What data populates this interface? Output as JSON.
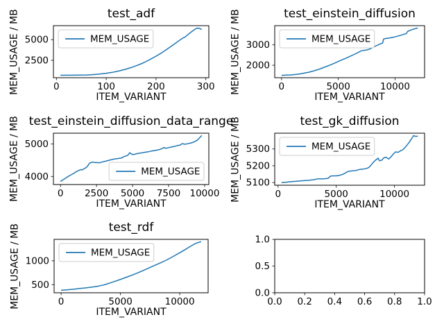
{
  "figure": {
    "background": "#ffffff",
    "line_color": "#1f77b4",
    "spine_color": "#000000",
    "legend_edge_color": "#cccccc",
    "legend_face_color": "rgba(255,255,255,0.8)"
  },
  "chart_data": [
    {
      "type": "line",
      "title": "test_adf",
      "xlabel": "ITEM_VARIANT",
      "ylabel": "MEM_USAGE / MB",
      "legend_loc": "upper left",
      "grid": false,
      "xlim": [
        -6,
        306
      ],
      "ylim": [
        394,
        6690
      ],
      "xticks": [
        0,
        100,
        200,
        300
      ],
      "xtick_labels": [
        "0",
        "100",
        "200",
        "300"
      ],
      "yticks": [
        2500,
        5000
      ],
      "ytick_labels": [
        "2500",
        "5000"
      ],
      "series": [
        {
          "name": "MEM_USAGE",
          "color": "#1f77b4",
          "points": [
            [
              8,
              690
            ],
            [
              20,
              698
            ],
            [
              32,
              700
            ],
            [
              45,
              705
            ],
            [
              60,
              725
            ],
            [
              72,
              760
            ],
            [
              85,
              820
            ],
            [
              100,
              930
            ],
            [
              112,
              1040
            ],
            [
              125,
              1200
            ],
            [
              138,
              1400
            ],
            [
              150,
              1620
            ],
            [
              162,
              1880
            ],
            [
              175,
              2200
            ],
            [
              188,
              2600
            ],
            [
              200,
              3000
            ],
            [
              210,
              3360
            ],
            [
              220,
              3750
            ],
            [
              230,
              4180
            ],
            [
              240,
              4600
            ],
            [
              248,
              4950
            ],
            [
              254,
              5200
            ],
            [
              258,
              5300
            ],
            [
              263,
              5550
            ],
            [
              268,
              5800
            ],
            [
              273,
              6030
            ],
            [
              278,
              6250
            ],
            [
              282,
              6390
            ],
            [
              285,
              6400
            ],
            [
              288,
              6340
            ],
            [
              292,
              6220
            ]
          ]
        }
      ]
    },
    {
      "type": "line",
      "title": "test_einstein_diffusion",
      "xlabel": "ITEM_VARIANT",
      "ylabel": "MEM_USAGE / MB",
      "legend_loc": "upper left",
      "grid": false,
      "xlim": [
        -600,
        12600
      ],
      "ylim": [
        1390,
        3940
      ],
      "xticks": [
        0,
        5000,
        10000
      ],
      "xtick_labels": [
        "0",
        "5000",
        "10000"
      ],
      "yticks": [
        2000,
        3000
      ],
      "ytick_labels": [
        "2000",
        "3000"
      ],
      "series": [
        {
          "name": "MEM_USAGE",
          "color": "#1f77b4",
          "points": [
            [
              0,
              1505
            ],
            [
              400,
              1515
            ],
            [
              800,
              1525
            ],
            [
              1200,
              1545
            ],
            [
              1600,
              1575
            ],
            [
              2000,
              1615
            ],
            [
              2400,
              1660
            ],
            [
              2800,
              1715
            ],
            [
              3200,
              1785
            ],
            [
              3600,
              1865
            ],
            [
              4000,
              1950
            ],
            [
              4400,
              2040
            ],
            [
              4800,
              2135
            ],
            [
              5200,
              2235
            ],
            [
              5600,
              2330
            ],
            [
              6000,
              2430
            ],
            [
              6400,
              2530
            ],
            [
              6700,
              2610
            ],
            [
              7000,
              2705
            ],
            [
              7200,
              2725
            ],
            [
              7500,
              2745
            ],
            [
              7800,
              2805
            ],
            [
              8100,
              2890
            ],
            [
              8400,
              2970
            ],
            [
              8700,
              3045
            ],
            [
              8900,
              3090
            ],
            [
              9000,
              3290
            ],
            [
              9200,
              3315
            ],
            [
              9500,
              3335
            ],
            [
              9800,
              3365
            ],
            [
              10100,
              3405
            ],
            [
              10400,
              3455
            ],
            [
              10700,
              3505
            ],
            [
              11000,
              3555
            ],
            [
              11100,
              3655
            ],
            [
              11300,
              3705
            ],
            [
              11600,
              3765
            ],
            [
              11900,
              3815
            ],
            [
              12000,
              3825
            ]
          ]
        }
      ]
    },
    {
      "type": "line",
      "title": "test_einstein_diffusion_data_range",
      "xlabel": "ITEM_VARIANT",
      "ylabel": "MEM_USAGE / MB",
      "legend_loc": "lower right",
      "grid": false,
      "xlim": [
        -490,
        10290
      ],
      "ylim": [
        3750,
        5330
      ],
      "xticks": [
        0,
        2500,
        5000,
        7500,
        10000
      ],
      "xtick_labels": [
        "0",
        "2500",
        "5000",
        "7500",
        "10000"
      ],
      "yticks": [
        4000,
        5000
      ],
      "ytick_labels": [
        "4000",
        "5000"
      ],
      "series": [
        {
          "name": "MEM_USAGE",
          "color": "#1f77b4",
          "points": [
            [
              0,
              3845
            ],
            [
              150,
              3890
            ],
            [
              300,
              3930
            ],
            [
              500,
              3990
            ],
            [
              700,
              4040
            ],
            [
              900,
              4090
            ],
            [
              1000,
              4120
            ],
            [
              1100,
              4150
            ],
            [
              1250,
              4180
            ],
            [
              1400,
              4210
            ],
            [
              1500,
              4200
            ],
            [
              1650,
              4240
            ],
            [
              1800,
              4280
            ],
            [
              1900,
              4330
            ],
            [
              2000,
              4400
            ],
            [
              2100,
              4430
            ],
            [
              2250,
              4440
            ],
            [
              2400,
              4425
            ],
            [
              2550,
              4425
            ],
            [
              2700,
              4420
            ],
            [
              2850,
              4440
            ],
            [
              3000,
              4455
            ],
            [
              3200,
              4475
            ],
            [
              3400,
              4500
            ],
            [
              3600,
              4520
            ],
            [
              3800,
              4540
            ],
            [
              4000,
              4550
            ],
            [
              4100,
              4560
            ],
            [
              4250,
              4570
            ],
            [
              4400,
              4610
            ],
            [
              4550,
              4630
            ],
            [
              4700,
              4660
            ],
            [
              4800,
              4730
            ],
            [
              4900,
              4700
            ],
            [
              5000,
              4670
            ],
            [
              5150,
              4680
            ],
            [
              5300,
              4700
            ],
            [
              5500,
              4715
            ],
            [
              5700,
              4730
            ],
            [
              5900,
              4745
            ],
            [
              6100,
              4760
            ],
            [
              6300,
              4780
            ],
            [
              6500,
              4795
            ],
            [
              6700,
              4810
            ],
            [
              6900,
              4830
            ],
            [
              7100,
              4870
            ],
            [
              7200,
              4890
            ],
            [
              7300,
              4865
            ],
            [
              7500,
              4885
            ],
            [
              7700,
              4905
            ],
            [
              7900,
              4925
            ],
            [
              8100,
              4945
            ],
            [
              8300,
              4965
            ],
            [
              8450,
              5010
            ],
            [
              8600,
              4990
            ],
            [
              8750,
              5000
            ],
            [
              8900,
              5015
            ],
            [
              9050,
              5030
            ],
            [
              9200,
              5050
            ],
            [
              9350,
              5080
            ],
            [
              9500,
              5120
            ],
            [
              9650,
              5190
            ],
            [
              9800,
              5260
            ]
          ]
        }
      ]
    },
    {
      "type": "line",
      "title": "test_gk_diffusion",
      "xlabel": "ITEM_VARIANT",
      "ylabel": "MEM_USAGE / MB",
      "legend_loc": "upper left",
      "grid": false,
      "xlim": [
        -285,
        12585
      ],
      "ylim": [
        5084,
        5394
      ],
      "xticks": [
        0,
        5000,
        10000
      ],
      "xtick_labels": [
        "0",
        "5000",
        "10000"
      ],
      "yticks": [
        5100,
        5200,
        5300
      ],
      "ytick_labels": [
        "5100",
        "5200",
        "5300"
      ],
      "series": [
        {
          "name": "MEM_USAGE",
          "color": "#1f77b4",
          "points": [
            [
              300,
              5100
            ],
            [
              700,
              5102
            ],
            [
              1100,
              5105
            ],
            [
              1500,
              5107
            ],
            [
              1900,
              5110
            ],
            [
              2300,
              5112
            ],
            [
              2700,
              5114
            ],
            [
              3100,
              5117
            ],
            [
              3400,
              5122
            ],
            [
              3700,
              5122
            ],
            [
              4000,
              5123
            ],
            [
              4300,
              5125
            ],
            [
              4500,
              5138
            ],
            [
              4700,
              5140
            ],
            [
              5000,
              5140
            ],
            [
              5300,
              5143
            ],
            [
              5600,
              5150
            ],
            [
              5900,
              5162
            ],
            [
              6100,
              5168
            ],
            [
              6400,
              5170
            ],
            [
              6700,
              5172
            ],
            [
              7000,
              5178
            ],
            [
              7300,
              5180
            ],
            [
              7600,
              5184
            ],
            [
              7800,
              5190
            ],
            [
              8000,
              5205
            ],
            [
              8200,
              5222
            ],
            [
              8400,
              5235
            ],
            [
              8600,
              5245
            ],
            [
              8700,
              5230
            ],
            [
              8900,
              5233
            ],
            [
              9100,
              5248
            ],
            [
              9300,
              5250
            ],
            [
              9500,
              5240
            ],
            [
              9700,
              5253
            ],
            [
              9900,
              5270
            ],
            [
              10100,
              5283
            ],
            [
              10300,
              5280
            ],
            [
              10500,
              5288
            ],
            [
              10700,
              5295
            ],
            [
              10900,
              5308
            ],
            [
              11100,
              5325
            ],
            [
              11300,
              5343
            ],
            [
              11500,
              5365
            ],
            [
              11650,
              5380
            ],
            [
              11800,
              5375
            ],
            [
              12000,
              5376
            ]
          ]
        }
      ]
    },
    {
      "type": "line",
      "title": "test_rdf",
      "xlabel": "ITEM_VARIANT",
      "ylabel": "MEM_USAGE / MB",
      "legend_loc": "upper left",
      "grid": false,
      "xlim": [
        -590,
        12390
      ],
      "ylim": [
        330,
        1450
      ],
      "xticks": [
        0,
        5000,
        10000
      ],
      "xtick_labels": [
        "0",
        "5000",
        "10000"
      ],
      "yticks": [
        500,
        1000
      ],
      "ytick_labels": [
        "500",
        "1000"
      ],
      "series": [
        {
          "name": "MEM_USAGE",
          "color": "#1f77b4",
          "points": [
            [
              0,
              382
            ],
            [
              400,
              390
            ],
            [
              800,
              398
            ],
            [
              1200,
              408
            ],
            [
              1600,
              420
            ],
            [
              2000,
              430
            ],
            [
              2400,
              442
            ],
            [
              2800,
              455
            ],
            [
              3200,
              472
            ],
            [
              3600,
              495
            ],
            [
              4000,
              525
            ],
            [
              4400,
              558
            ],
            [
              4800,
              592
            ],
            [
              5200,
              628
            ],
            [
              5600,
              664
            ],
            [
              6000,
              702
            ],
            [
              6400,
              742
            ],
            [
              6800,
              784
            ],
            [
              7200,
              828
            ],
            [
              7600,
              872
            ],
            [
              8000,
              916
            ],
            [
              8400,
              960
            ],
            [
              8800,
              1006
            ],
            [
              9200,
              1058
            ],
            [
              9600,
              1114
            ],
            [
              10000,
              1170
            ],
            [
              10400,
              1228
            ],
            [
              10800,
              1288
            ],
            [
              11200,
              1346
            ],
            [
              11500,
              1380
            ],
            [
              11800,
              1400
            ]
          ]
        }
      ]
    },
    {
      "type": "line",
      "title": "",
      "xlabel": "",
      "ylabel": "",
      "legend_loc": null,
      "grid": false,
      "xlim": [
        0,
        1
      ],
      "ylim": [
        0,
        1
      ],
      "xticks": [
        0,
        0.2,
        0.4,
        0.6,
        0.8,
        1.0
      ],
      "xtick_labels": [
        "0.0",
        "0.2",
        "0.4",
        "0.6",
        "0.8",
        "1.0"
      ],
      "yticks": [
        0,
        0.5,
        1.0
      ],
      "ytick_labels": [
        "0.0",
        "0.5",
        "1.0"
      ],
      "series": []
    }
  ]
}
